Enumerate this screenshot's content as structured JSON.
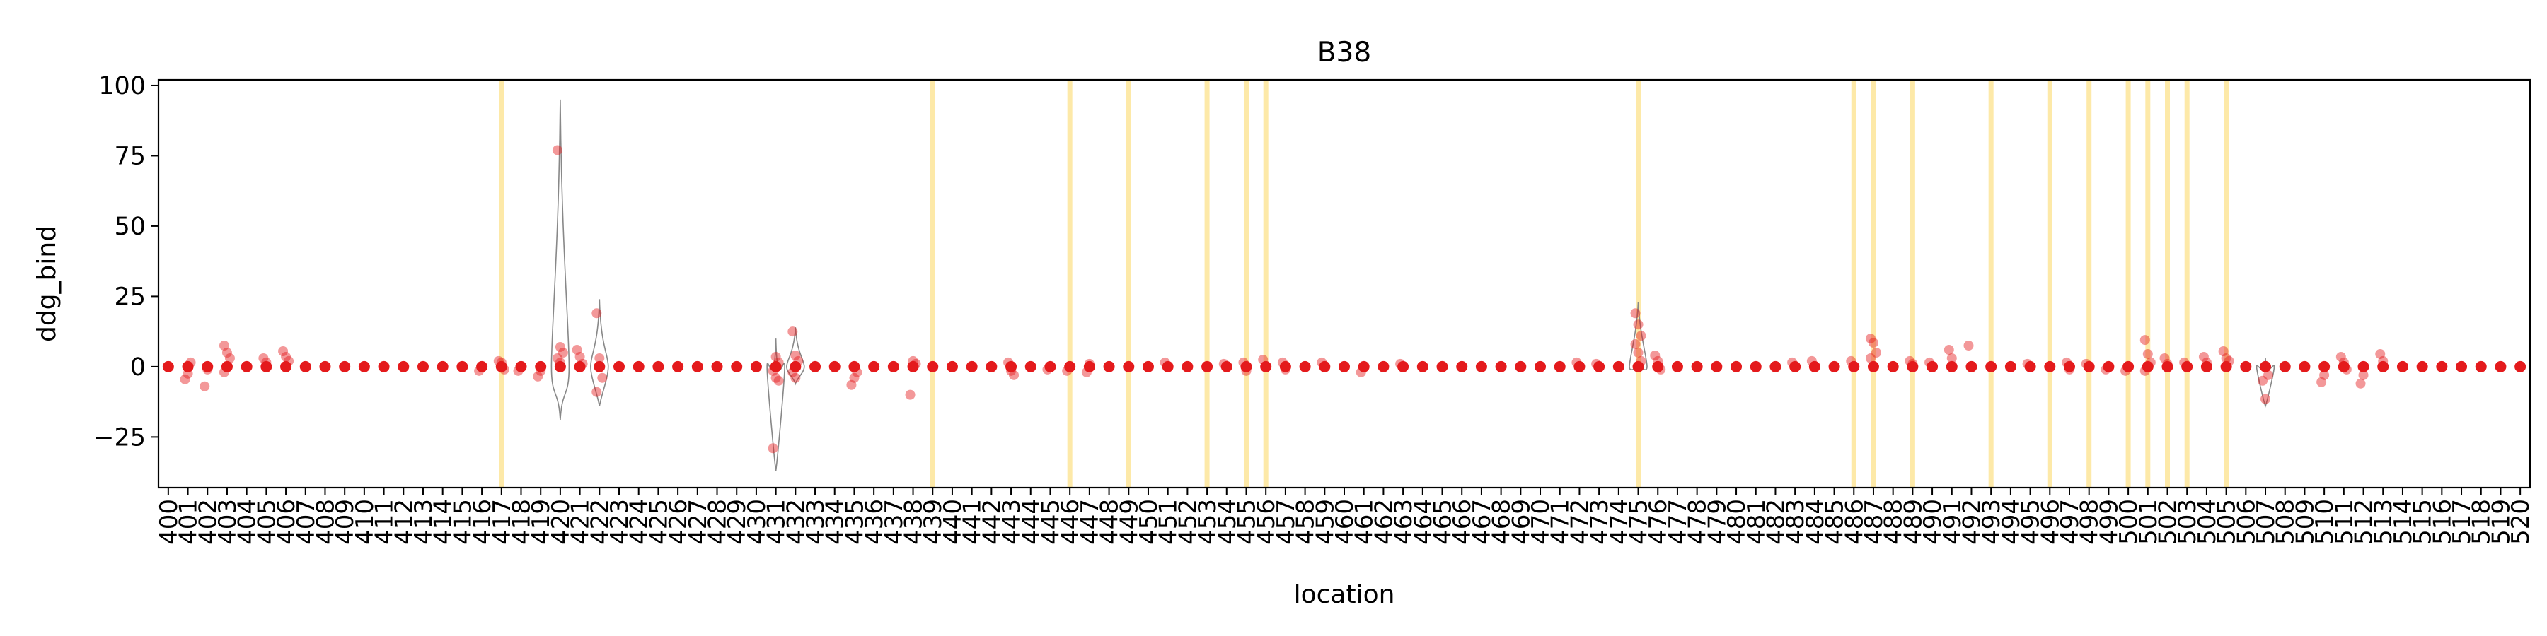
{
  "chart_data": {
    "type": "scatter",
    "title": "B38",
    "xlabel": "location",
    "ylabel": "ddg_bind",
    "ylim": [
      -43,
      102
    ],
    "yticks": [
      -25,
      0,
      25,
      50,
      75,
      100
    ],
    "grid": false,
    "colors": {
      "points": "#e41a1c",
      "highlight": "#fde9a8",
      "violin": "#888888",
      "axis": "#000000"
    },
    "categories": [
      "400",
      "401",
      "402",
      "403",
      "404",
      "405",
      "406",
      "407",
      "408",
      "409",
      "410",
      "411",
      "412",
      "413",
      "414",
      "415",
      "416",
      "417",
      "418",
      "419",
      "420",
      "421",
      "422",
      "423",
      "424",
      "425",
      "426",
      "427",
      "428",
      "429",
      "430",
      "431",
      "432",
      "433",
      "434",
      "435",
      "436",
      "437",
      "438",
      "439",
      "440",
      "441",
      "442",
      "443",
      "444",
      "445",
      "446",
      "447",
      "448",
      "449",
      "450",
      "451",
      "452",
      "453",
      "454",
      "455",
      "456",
      "457",
      "458",
      "459",
      "460",
      "461",
      "462",
      "463",
      "464",
      "465",
      "466",
      "467",
      "468",
      "469",
      "470",
      "471",
      "472",
      "473",
      "474",
      "475",
      "476",
      "477",
      "478",
      "479",
      "480",
      "481",
      "482",
      "483",
      "484",
      "485",
      "486",
      "487",
      "488",
      "489",
      "490",
      "491",
      "492",
      "493",
      "494",
      "495",
      "496",
      "497",
      "498",
      "499",
      "500",
      "501",
      "502",
      "503",
      "504",
      "505",
      "506",
      "507",
      "508",
      "509",
      "510",
      "511",
      "512",
      "513",
      "514",
      "515",
      "516",
      "517",
      "518",
      "519",
      "520"
    ],
    "highlighted": [
      "417",
      "439",
      "446",
      "449",
      "453",
      "455",
      "456",
      "475",
      "486",
      "487",
      "489",
      "493",
      "496",
      "498",
      "500",
      "501",
      "502",
      "503",
      "505"
    ],
    "outliers": {
      "401": [
        -4.5,
        -2.5,
        1.5
      ],
      "402": [
        -7,
        -1
      ],
      "403": [
        7.5,
        5,
        3,
        -2
      ],
      "405": [
        3,
        1.5
      ],
      "406": [
        5.5,
        3.5,
        2
      ],
      "416": [
        -1.5
      ],
      "417": [
        2,
        1.5,
        -1
      ],
      "418": [
        -1.5
      ],
      "419": [
        -3.5,
        -1.5
      ],
      "420": [
        77,
        7,
        5,
        3,
        1.5
      ],
      "421": [
        6,
        3.5,
        1
      ],
      "422": [
        19,
        3,
        -4,
        -9
      ],
      "431": [
        -29,
        3.5,
        1.5,
        -1.5,
        -4,
        -5
      ],
      "432": [
        12.5,
        4,
        2,
        -2,
        -4
      ],
      "435": [
        -6.5,
        -4,
        -2
      ],
      "438": [
        -10,
        2,
        1
      ],
      "443": [
        1.5,
        -1.5,
        -3
      ],
      "445": [
        -1
      ],
      "446": [
        -1.5
      ],
      "447": [
        -2,
        1
      ],
      "451": [
        1.5
      ],
      "454": [
        1
      ],
      "455": [
        1.5,
        -1.5
      ],
      "456": [
        2.5
      ],
      "457": [
        1.5,
        -1
      ],
      "459": [
        1.5
      ],
      "461": [
        -2
      ],
      "463": [
        1
      ],
      "472": [
        1.5
      ],
      "473": [
        1
      ],
      "475": [
        19,
        15,
        11,
        8,
        5,
        2
      ],
      "476": [
        4,
        2,
        -1
      ],
      "483": [
        1.5
      ],
      "484": [
        2
      ],
      "486": [
        2
      ],
      "487": [
        10,
        8.5,
        5,
        3
      ],
      "489": [
        2,
        1
      ],
      "490": [
        1.5
      ],
      "491": [
        6,
        3
      ],
      "492": [
        7.5
      ],
      "495": [
        1
      ],
      "497": [
        1.5,
        -1
      ],
      "498": [
        1
      ],
      "499": [
        -1
      ],
      "500": [
        -1.5
      ],
      "501": [
        9.5,
        4.5,
        1.5,
        -1.5
      ],
      "502": [
        3,
        1
      ],
      "503": [
        1.5
      ],
      "504": [
        3.5,
        1.5
      ],
      "505": [
        5.5,
        3,
        2
      ],
      "507": [
        -5,
        -11.5,
        -3
      ],
      "510": [
        -5.5,
        -3
      ],
      "511": [
        3.5,
        1.5,
        -1
      ],
      "512": [
        -6,
        -3
      ],
      "513": [
        4.5,
        2
      ]
    },
    "violins": [
      {
        "location": "420",
        "min": -19,
        "max": 95
      },
      {
        "location": "422",
        "min": -14,
        "max": 24
      },
      {
        "location": "431",
        "min": -37,
        "max": 10
      },
      {
        "location": "432",
        "min": -6,
        "max": 14
      },
      {
        "location": "475",
        "min": -2,
        "max": 23
      },
      {
        "location": "507",
        "min": -14,
        "max": 3
      }
    ]
  }
}
